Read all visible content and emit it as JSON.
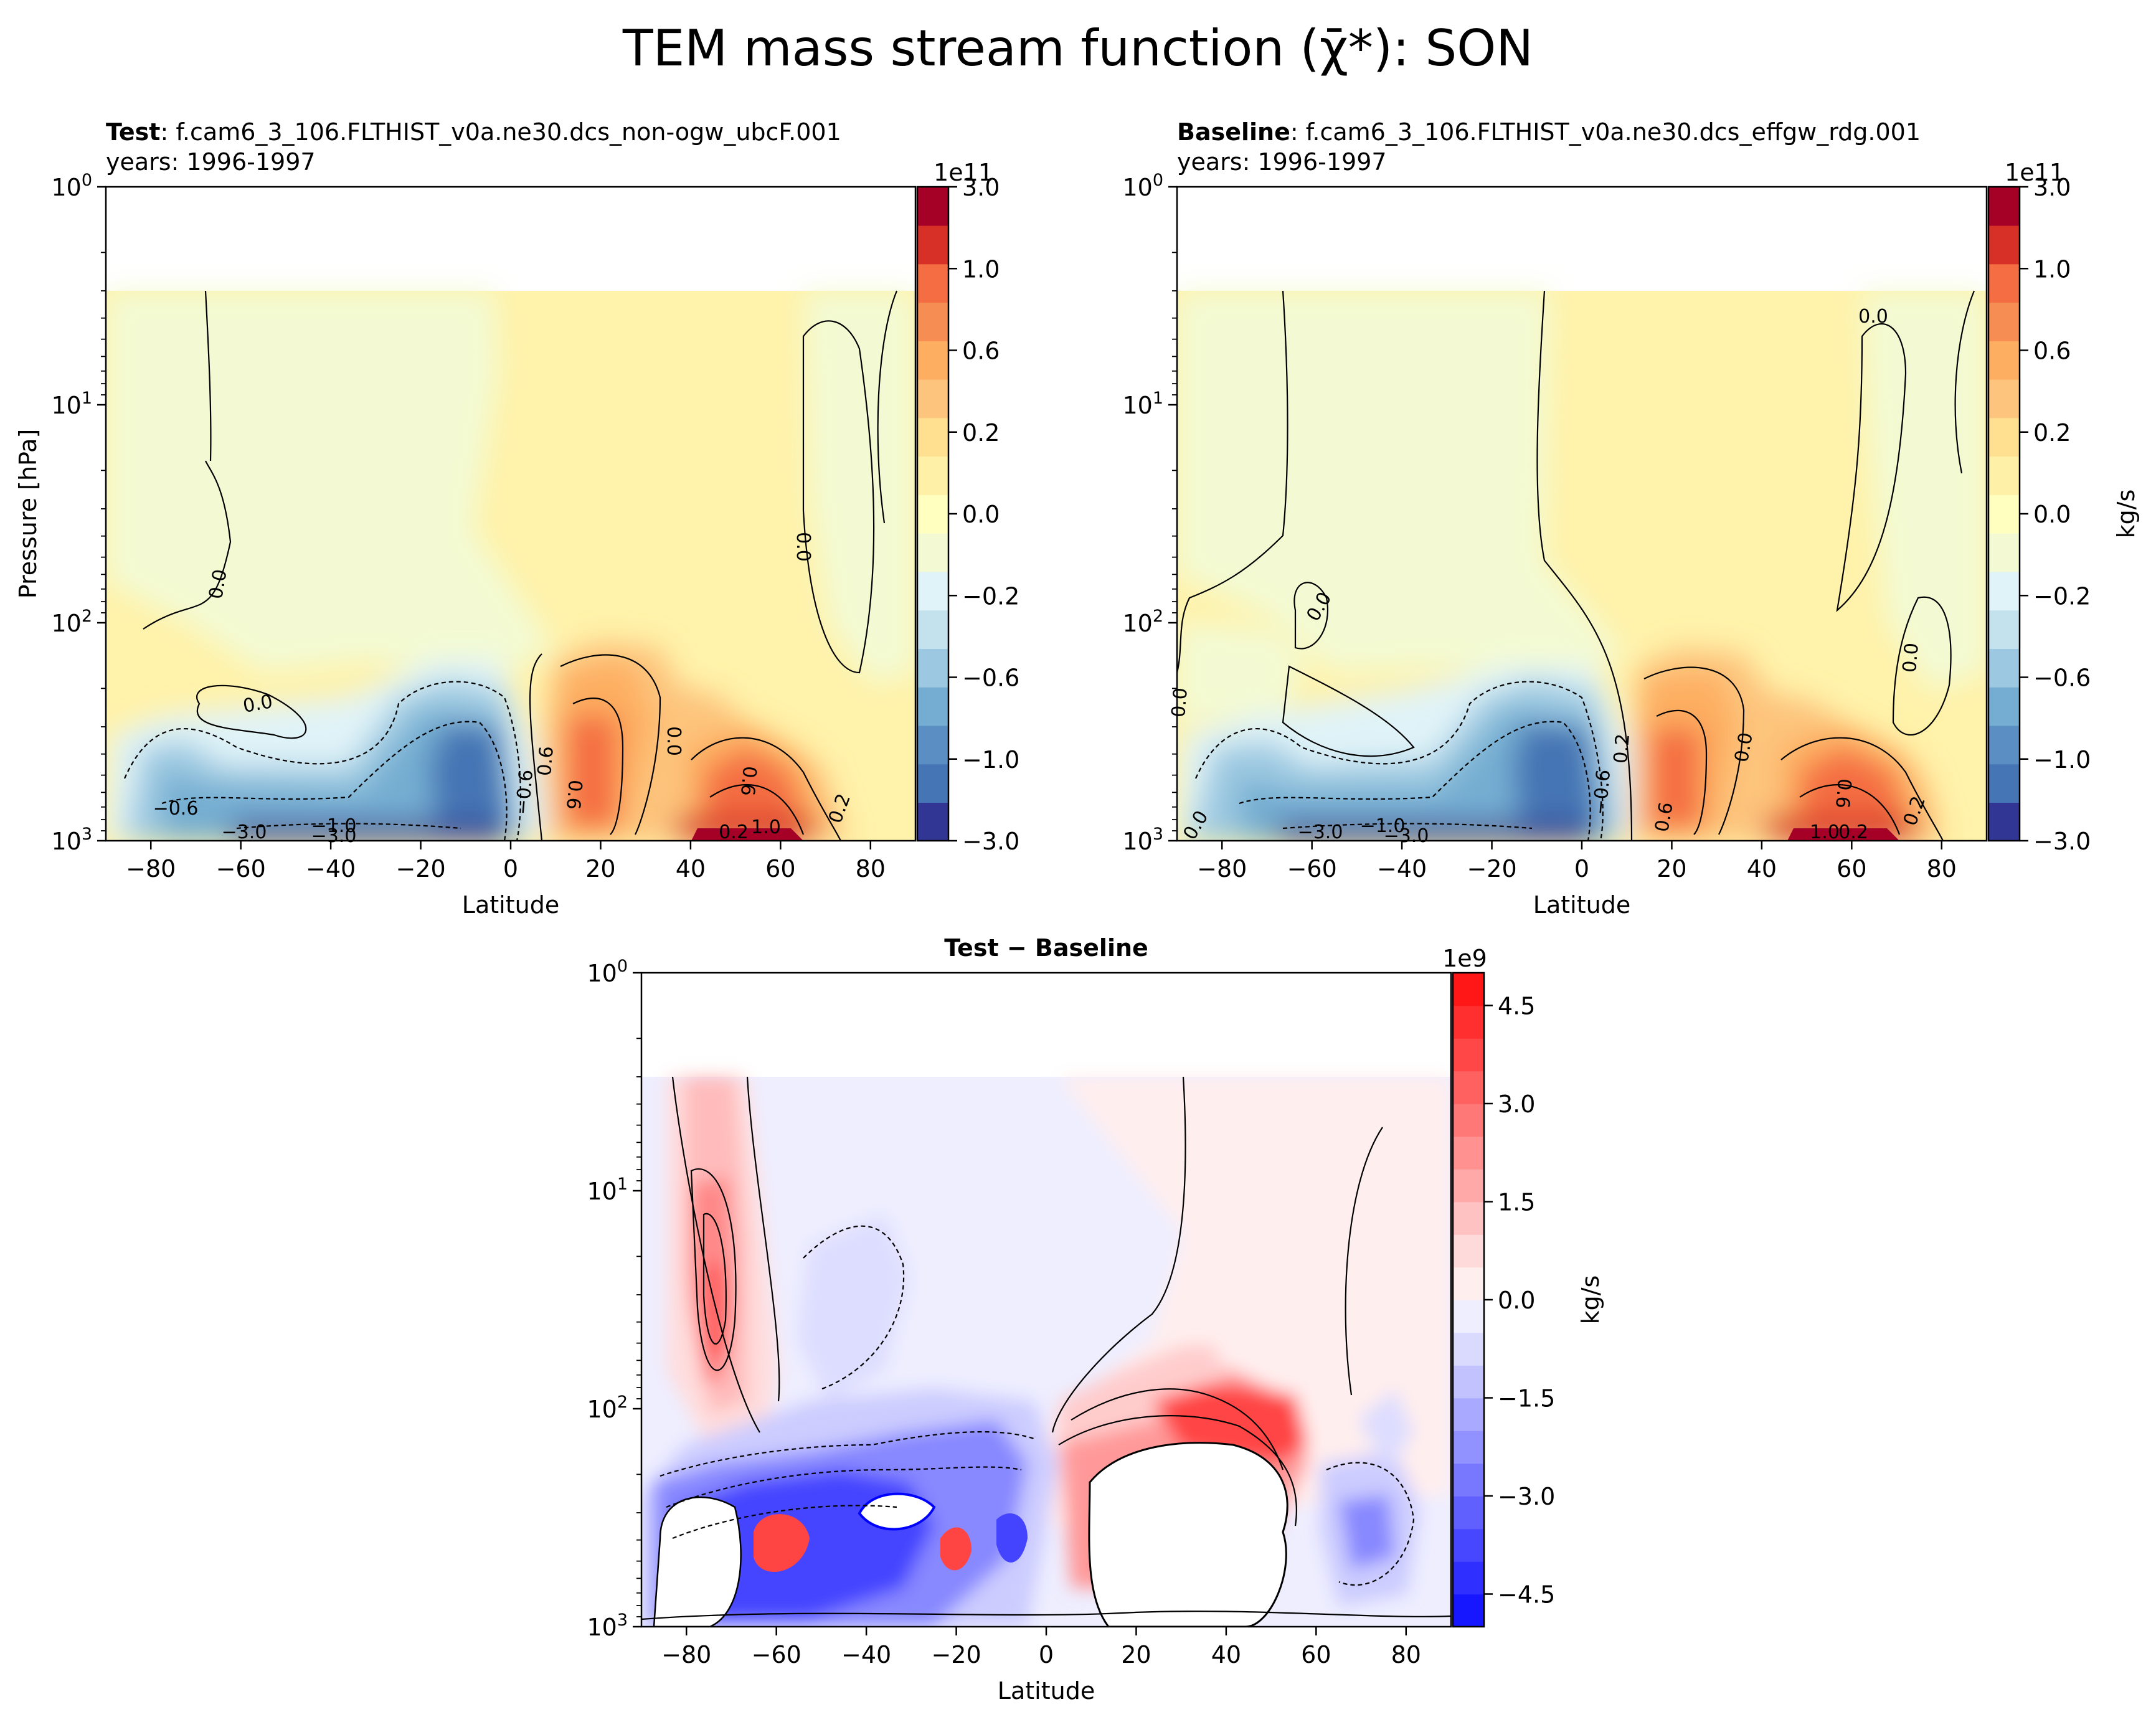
{
  "figure": {
    "suptitle": "TEM mass stream function (χ̄*): SON"
  },
  "chart_data": [
    {
      "type": "heatmap",
      "panel": "test",
      "title_bold": "Test",
      "title_rest": ": f.cam6_3_106.FLTHIST_v0a.ne30.dcs_non-ogw_ubcF.001",
      "subtitle": "years: 1996-1997",
      "xlabel": "Latitude",
      "ylabel": "Pressure [hPa]",
      "xlim": [
        -90,
        90
      ],
      "ylim": [
        1000,
        1
      ],
      "yscale": "log",
      "x_ticks": [
        "−80",
        "−60",
        "−40",
        "−20",
        "0",
        "20",
        "40",
        "60",
        "80"
      ],
      "y_ticks": [
        "10^3",
        "10^2",
        "10^1",
        "10^0"
      ],
      "colormap": "RdYlBu_r",
      "colorbar": {
        "exponent": "1e11",
        "label": "",
        "tick_labels": [
          "3.0",
          "1.0",
          "0.6",
          "0.2",
          "0.0",
          "−0.2",
          "−0.6",
          "−1.0",
          "−3.0"
        ],
        "levels": [
          -3.0,
          -2.0,
          -1.0,
          -0.8,
          -0.6,
          -0.4,
          -0.2,
          -0.1,
          0.0,
          0.1,
          0.2,
          0.4,
          0.6,
          0.8,
          1.0,
          2.0,
          3.0
        ],
        "colors": [
          "#313695",
          "#4575b4",
          "#5b8fc4",
          "#74add1",
          "#9cc9e1",
          "#c4e2ee",
          "#e0f3f8",
          "#f3fad3",
          "#ffffbf",
          "#fff0a8",
          "#fee090",
          "#fdc47d",
          "#fdae61",
          "#f68d52",
          "#f46d43",
          "#d73027",
          "#a50026"
        ]
      },
      "features": [
        {
          "lat": -5,
          "p": 600,
          "value": -1.0
        },
        {
          "lat": -70,
          "p": 600,
          "value": -0.6
        },
        {
          "lat": -45,
          "p": 950,
          "value": -3.0
        },
        {
          "lat": 18,
          "p": 400,
          "value": 1.0
        },
        {
          "lat": 45,
          "p": 800,
          "value": 1.0
        },
        {
          "lat": 45,
          "p": 980,
          "value": 3.0
        }
      ],
      "contour_labels": [
        "0.0",
        "0.0",
        "−0.6",
        "−3.0",
        "−1.0",
        "−3.0",
        "−0.6",
        "0.6",
        "0.6",
        "0.0",
        "0.6",
        "1.0",
        "0.2",
        "0.2",
        "0.0"
      ]
    },
    {
      "type": "heatmap",
      "panel": "baseline",
      "title_bold": "Baseline",
      "title_rest": ": f.cam6_3_106.FLTHIST_v0a.ne30.dcs_effgw_rdg.001",
      "subtitle": "years: 1996-1997",
      "xlabel": "Latitude",
      "ylabel": "",
      "xlim": [
        -90,
        90
      ],
      "ylim": [
        1000,
        1
      ],
      "yscale": "log",
      "x_ticks": [
        "−80",
        "−60",
        "−40",
        "−20",
        "0",
        "20",
        "40",
        "60",
        "80"
      ],
      "y_ticks": [
        "10^3",
        "10^2",
        "10^1",
        "10^0"
      ],
      "colormap": "RdYlBu_r",
      "colorbar": {
        "exponent": "1e11",
        "label": "kg/s",
        "tick_labels": [
          "3.0",
          "1.0",
          "0.6",
          "0.2",
          "0.0",
          "−0.2",
          "−0.6",
          "−1.0",
          "−3.0"
        ]
      },
      "features": [
        {
          "lat": -5,
          "p": 600,
          "value": -1.0
        },
        {
          "lat": -70,
          "p": 600,
          "value": -0.6
        },
        {
          "lat": -45,
          "p": 950,
          "value": -3.0
        },
        {
          "lat": 18,
          "p": 400,
          "value": 1.0
        },
        {
          "lat": 50,
          "p": 800,
          "value": 1.0
        },
        {
          "lat": 50,
          "p": 980,
          "value": 3.0
        }
      ],
      "contour_labels": [
        "0.0",
        "0.0",
        "0.0",
        "0.0",
        "−3.0",
        "−1.0",
        "−3.0",
        "−0.6",
        "0.2",
        "0.6",
        "0.0",
        "0.6",
        "1.0",
        "0.2",
        "0.2",
        "0.0"
      ]
    },
    {
      "type": "heatmap",
      "panel": "difference",
      "title": "Test − Baseline",
      "xlabel": "Latitude",
      "ylabel": "",
      "xlim": [
        -90,
        90
      ],
      "ylim": [
        1000,
        1
      ],
      "yscale": "log",
      "x_ticks": [
        "−80",
        "−60",
        "−40",
        "−20",
        "0",
        "20",
        "40",
        "60",
        "80"
      ],
      "y_ticks": [
        "10^3",
        "10^2",
        "10^1",
        "10^0"
      ],
      "colormap": "bwr",
      "colorbar": {
        "exponent": "1e9",
        "label": "kg/s",
        "tick_labels": [
          "4.5",
          "3.0",
          "1.5",
          "0.0",
          "−1.5",
          "−3.0",
          "−4.5"
        ],
        "range": [
          -5.0,
          5.0
        ]
      },
      "features": [
        {
          "lat": -72,
          "p": 40,
          "value": 3.0
        },
        {
          "lat": -80,
          "p": 500,
          "value": -5.0
        },
        {
          "lat": -60,
          "p": 450,
          "value": 3.0
        },
        {
          "lat": -40,
          "p": 300,
          "value": -4.5
        },
        {
          "lat": 15,
          "p": 400,
          "value": 5.0
        },
        {
          "lat": 0,
          "p": 150,
          "value": 3.0
        },
        {
          "lat": 70,
          "p": 450,
          "value": -3.0
        }
      ]
    }
  ]
}
